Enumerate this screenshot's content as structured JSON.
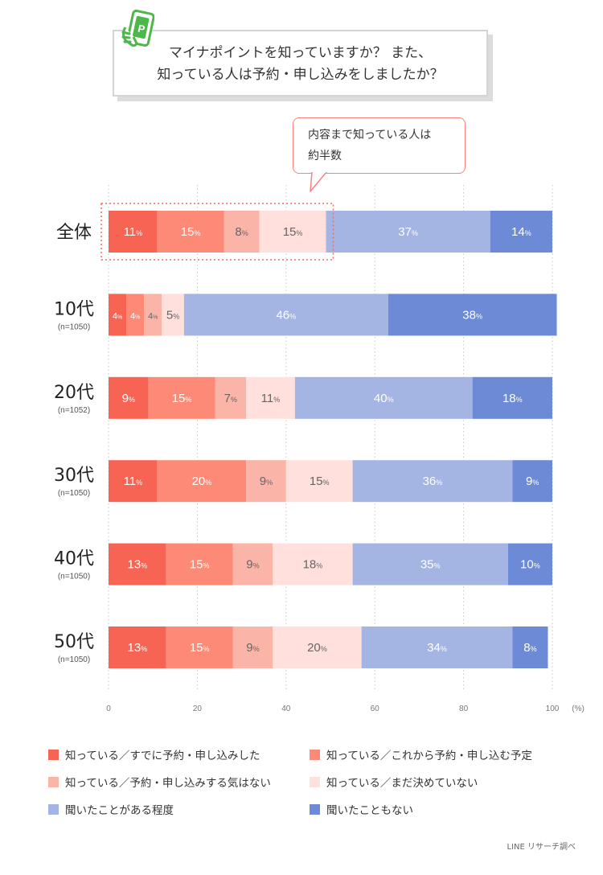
{
  "header": {
    "title_line1": "マイナポイントを知っていますか？ また、",
    "title_line2": "知っている人は予約・申し込みをしましたか？",
    "icon_letter": "P"
  },
  "callout": {
    "line1": "内容まで知っている人は",
    "line2": "約半数"
  },
  "chart_data": {
    "type": "bar",
    "orientation": "horizontal",
    "stacked": true,
    "categories": [
      "全体",
      "10代",
      "20代",
      "30代",
      "40代",
      "50代"
    ],
    "category_notes": [
      "",
      "(n=1050)",
      "(n=1052)",
      "(n=1050)",
      "(n=1050)",
      "(n=1050)"
    ],
    "series": [
      {
        "name": "知っている／すでに予約・申し込みした",
        "color": "#f86454",
        "values": [
          11,
          4,
          9,
          11,
          13,
          13
        ]
      },
      {
        "name": "知っている／これから予約・申し込む予定",
        "color": "#fd8a76",
        "values": [
          15,
          4,
          15,
          20,
          15,
          15
        ]
      },
      {
        "name": "知っている／予約・申し込みする気はない",
        "color": "#fbb4a8",
        "values": [
          8,
          4,
          7,
          9,
          9,
          9
        ]
      },
      {
        "name": "知っている／まだ決めていない",
        "color": "#ffe0dc",
        "values": [
          15,
          5,
          11,
          15,
          18,
          20
        ]
      },
      {
        "name": "聞いたことがある程度",
        "color": "#a4b5e4",
        "values": [
          37,
          46,
          40,
          36,
          35,
          34
        ]
      },
      {
        "name": "聞いたこともない",
        "color": "#6c8ad6",
        "values": [
          14,
          38,
          18,
          9,
          10,
          8
        ]
      }
    ],
    "xlim": [
      0,
      100
    ],
    "xticks": [
      "0",
      "20",
      "40",
      "60",
      "80",
      "100"
    ],
    "unit": "(%)",
    "value_suffix": "%",
    "grid": "vertical",
    "legend_position": "bottom"
  },
  "source": "LINE リサーチ調べ"
}
